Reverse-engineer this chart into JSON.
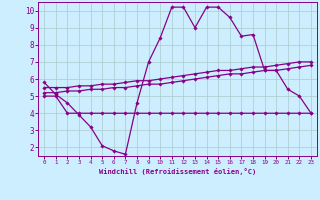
{
  "xlabel": "Windchill (Refroidissement éolien,°C)",
  "background_color": "#cceeff",
  "grid_color": "#aacccc",
  "line_color": "#880088",
  "xlim": [
    -0.5,
    23.5
  ],
  "ylim": [
    1.5,
    10.5
  ],
  "xticks": [
    0,
    1,
    2,
    3,
    4,
    5,
    6,
    7,
    8,
    9,
    10,
    11,
    12,
    13,
    14,
    15,
    16,
    17,
    18,
    19,
    20,
    21,
    22,
    23
  ],
  "yticks": [
    2,
    3,
    4,
    5,
    6,
    7,
    8,
    9,
    10
  ],
  "series": {
    "line_jagged": {
      "x": [
        0,
        1,
        2,
        3,
        4,
        5,
        6,
        7,
        8,
        9,
        10,
        11,
        12,
        13,
        14,
        15,
        16,
        17,
        18,
        19,
        20,
        21,
        22,
        23
      ],
      "y": [
        5.8,
        5.1,
        4.6,
        3.9,
        3.2,
        2.1,
        1.8,
        1.6,
        4.6,
        7.0,
        8.4,
        10.2,
        10.2,
        9.0,
        10.2,
        10.2,
        9.6,
        8.5,
        8.6,
        6.5,
        6.5,
        5.4,
        5.0,
        4.0
      ]
    },
    "line_flat": {
      "x": [
        0,
        1,
        2,
        3,
        4,
        5,
        6,
        7,
        8,
        9,
        10,
        11,
        12,
        13,
        14,
        15,
        16,
        17,
        18,
        19,
        20,
        21,
        22,
        23
      ],
      "y": [
        5.0,
        5.0,
        4.0,
        4.0,
        4.0,
        4.0,
        4.0,
        4.0,
        4.0,
        4.0,
        4.0,
        4.0,
        4.0,
        4.0,
        4.0,
        4.0,
        4.0,
        4.0,
        4.0,
        4.0,
        4.0,
        4.0,
        4.0,
        4.0
      ]
    },
    "line_rise1": {
      "x": [
        0,
        1,
        2,
        3,
        4,
        5,
        6,
        7,
        8,
        9,
        10,
        11,
        12,
        13,
        14,
        15,
        16,
        17,
        18,
        19,
        20,
        21,
        22,
        23
      ],
      "y": [
        5.2,
        5.2,
        5.3,
        5.3,
        5.4,
        5.4,
        5.5,
        5.5,
        5.6,
        5.7,
        5.7,
        5.8,
        5.9,
        6.0,
        6.1,
        6.2,
        6.3,
        6.3,
        6.4,
        6.5,
        6.5,
        6.6,
        6.7,
        6.8
      ]
    },
    "line_rise2": {
      "x": [
        0,
        1,
        2,
        3,
        4,
        5,
        6,
        7,
        8,
        9,
        10,
        11,
        12,
        13,
        14,
        15,
        16,
        17,
        18,
        19,
        20,
        21,
        22,
        23
      ],
      "y": [
        5.5,
        5.5,
        5.5,
        5.6,
        5.6,
        5.7,
        5.7,
        5.8,
        5.9,
        5.9,
        6.0,
        6.1,
        6.2,
        6.3,
        6.4,
        6.5,
        6.5,
        6.6,
        6.7,
        6.7,
        6.8,
        6.9,
        7.0,
        7.0
      ]
    }
  }
}
